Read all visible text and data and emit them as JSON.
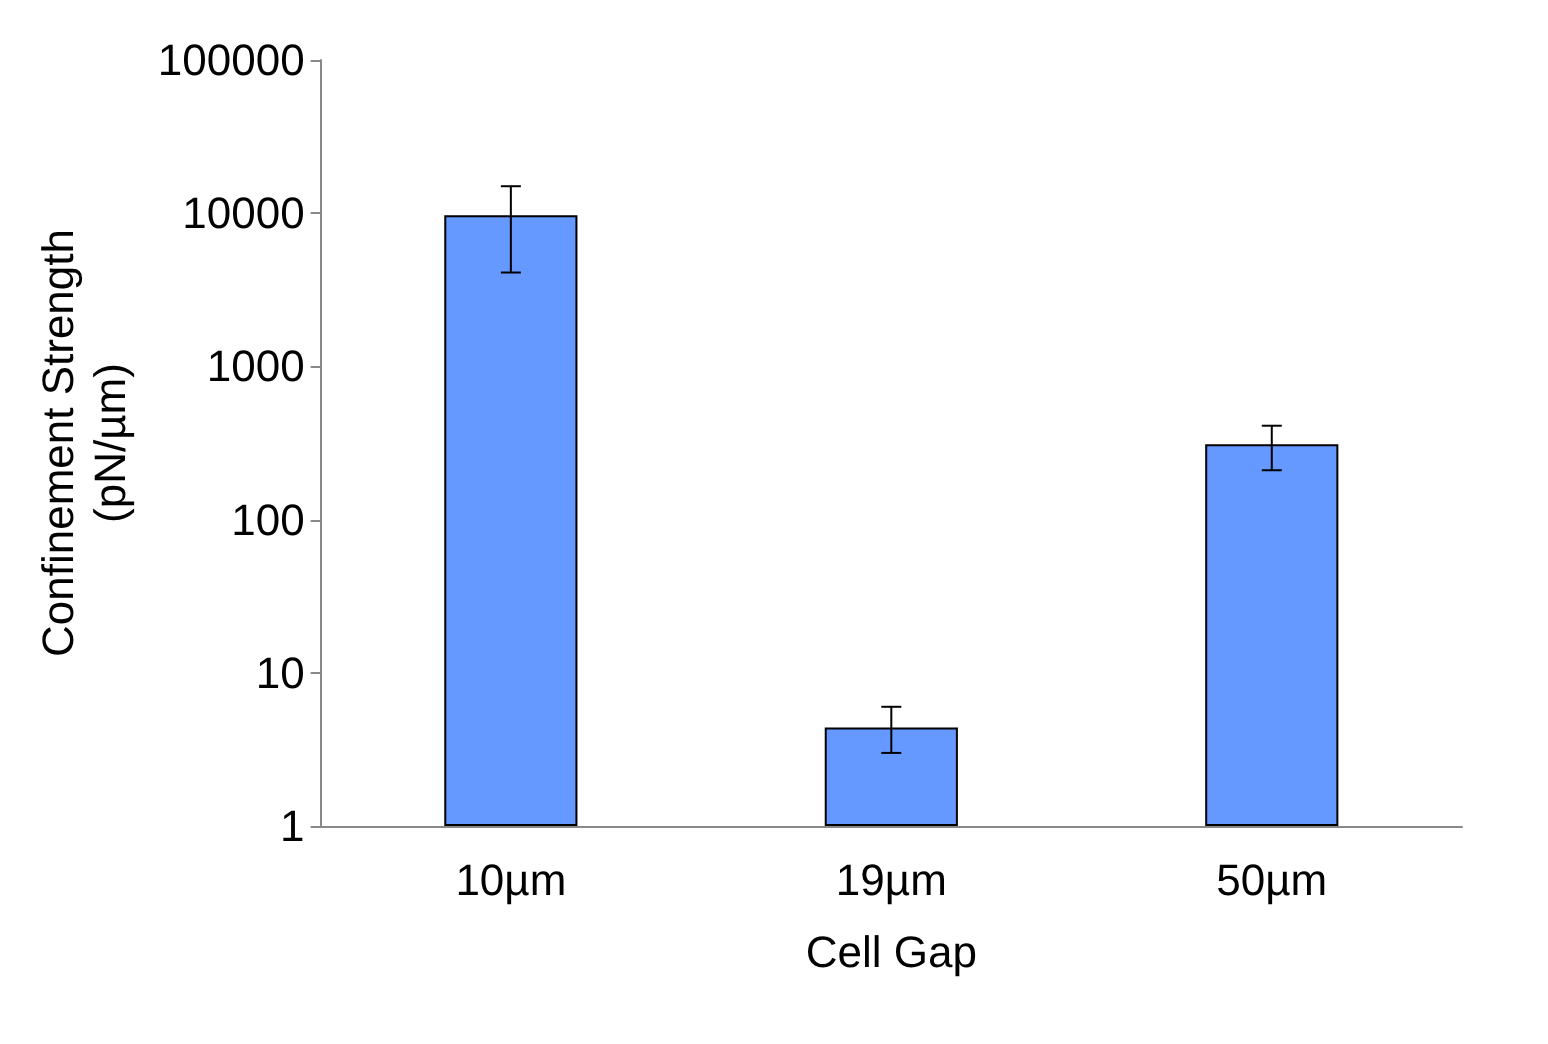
{
  "chart_data": {
    "type": "bar",
    "xlabel": "Cell Gap",
    "ylabel": "Confinement Strength\n(pN/µm)",
    "categories": [
      "10µm",
      "19µm",
      "50µm"
    ],
    "values": [
      9700,
      4.4,
      310
    ],
    "errors": [
      [
        4100,
        15000
      ],
      [
        3,
        6
      ],
      [
        210,
        410
      ]
    ],
    "color": "#6699ff",
    "log": true,
    "ylim": [
      1,
      100000
    ],
    "yticks": [
      1,
      10,
      100,
      1000,
      10000,
      100000
    ],
    "grid": false
  }
}
